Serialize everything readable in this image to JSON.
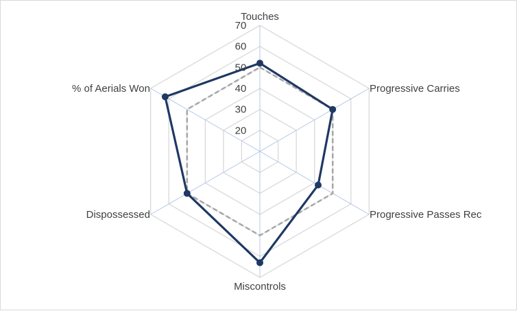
{
  "chart_data": {
    "type": "radar",
    "categories": [
      "Touches",
      "Progressive Carries",
      "Progressive Passes Rec",
      "Miscontrols",
      "Dispossessed",
      "% of Aerials Won"
    ],
    "rlim": [
      10,
      70
    ],
    "ticks": [
      20,
      30,
      40,
      50,
      60,
      70
    ],
    "tick_labels": [
      "20",
      "30",
      "40",
      "50",
      "60",
      "70"
    ],
    "grid": true,
    "legend": "none",
    "series": [
      {
        "values": [
          50,
          50,
          50,
          50,
          50,
          50
        ],
        "color": "#a6a6a6",
        "style": "dashed"
      },
      {
        "values": [
          52,
          50,
          42,
          63,
          50,
          62
        ],
        "color": "#1f3864",
        "style": "solid",
        "markers": true
      }
    ],
    "colors": {
      "grid": "#d9d9d9",
      "spoke": "#b4c7e7",
      "text": "#404040"
    }
  }
}
